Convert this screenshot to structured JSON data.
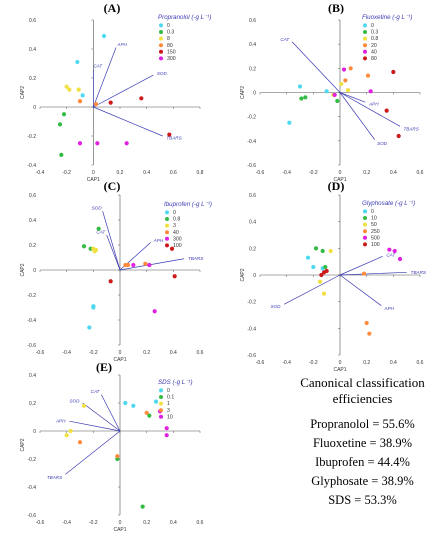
{
  "summary": {
    "title": "Canonical classification efficiencies",
    "lines": [
      "Propranolol = 55.6%",
      "Fluoxetine = 38.9%",
      "Ibuprofen = 44.4%",
      "Glyphosate = 38.9%",
      "SDS = 53.3%"
    ]
  },
  "chart_data": [
    {
      "type": "scatter",
      "panel_label": "(A)",
      "legend_title": "Propranolol (-g L⁻¹)",
      "xlabel": "CAP1",
      "ylabel": "CAP2",
      "xlim": [
        -0.4,
        0.8
      ],
      "ylim": [
        -0.4,
        0.6
      ],
      "xticks": [
        -0.4,
        -0.2,
        0,
        0.2,
        0.4,
        0.6,
        0.8
      ],
      "yticks": [
        -0.4,
        -0.2,
        0,
        0.2,
        0.4,
        0.6
      ],
      "series": [
        {
          "name": "0",
          "color": "#4dd8f0",
          "points": [
            [
              -0.12,
              0.31
            ],
            [
              0.08,
              0.49
            ],
            [
              -0.08,
              0.08
            ]
          ]
        },
        {
          "name": "0.3",
          "color": "#33bb44",
          "points": [
            [
              -0.25,
              -0.12
            ],
            [
              -0.24,
              -0.33
            ],
            [
              -0.22,
              -0.05
            ]
          ]
        },
        {
          "name": "8",
          "color": "#f0e040",
          "points": [
            [
              -0.2,
              0.14
            ],
            [
              -0.18,
              0.12
            ],
            [
              -0.11,
              0.12
            ]
          ]
        },
        {
          "name": "80",
          "color": "#ff8a3d",
          "points": [
            [
              -0.1,
              0.04
            ],
            [
              -0.1,
              0.04
            ],
            [
              0.02,
              0.02
            ]
          ]
        },
        {
          "name": "150",
          "color": "#cc1a1a",
          "points": [
            [
              0.13,
              0.03
            ],
            [
              0.57,
              -0.19
            ],
            [
              0.36,
              0.06
            ]
          ]
        },
        {
          "name": "300",
          "color": "#e020e0",
          "points": [
            [
              -0.1,
              -0.25
            ],
            [
              0.03,
              -0.25
            ],
            [
              0.25,
              -0.25
            ]
          ]
        }
      ],
      "vectors": [
        {
          "label": "CAT",
          "end": [
            0.0,
            0.26
          ]
        },
        {
          "label": "APH",
          "end": [
            0.17,
            0.41
          ]
        },
        {
          "label": "SOD",
          "end": [
            0.45,
            0.22
          ]
        },
        {
          "label": "TBARS",
          "end": [
            0.52,
            -0.2
          ]
        }
      ]
    },
    {
      "type": "scatter",
      "panel_label": "(B)",
      "legend_title": "Fluoxetine (-g L⁻¹)",
      "xlabel": "CAP1",
      "ylabel": "CAP2",
      "xlim": [
        -0.6,
        0.6
      ],
      "ylim": [
        -0.6,
        0.6
      ],
      "xticks": [
        -0.6,
        -0.4,
        -0.2,
        0,
        0.2,
        0.4,
        0.6
      ],
      "yticks": [
        -0.6,
        -0.4,
        -0.2,
        0,
        0.2,
        0.4,
        0.6
      ],
      "series": [
        {
          "name": "0",
          "color": "#4dd8f0",
          "points": [
            [
              -0.38,
              -0.25
            ],
            [
              -0.3,
              0.05
            ],
            [
              -0.1,
              0.01
            ]
          ]
        },
        {
          "name": "0.3",
          "color": "#33bb44",
          "points": [
            [
              -0.29,
              -0.05
            ],
            [
              -0.26,
              -0.04
            ],
            [
              -0.02,
              -0.07
            ]
          ]
        },
        {
          "name": "0.8",
          "color": "#f0e040",
          "points": [
            [
              0.06,
              0.02
            ],
            [
              0.01,
              0.07
            ],
            [
              -0.05,
              -0.02
            ]
          ]
        },
        {
          "name": "20",
          "color": "#ff8a3d",
          "points": [
            [
              0.08,
              0.2
            ],
            [
              0.04,
              0.1
            ],
            [
              0.21,
              0.14
            ]
          ]
        },
        {
          "name": "40",
          "color": "#e020e0",
          "points": [
            [
              -0.04,
              -0.02
            ],
            [
              0.03,
              0.19
            ],
            [
              0.23,
              0.01
            ]
          ]
        },
        {
          "name": "80",
          "color": "#cc1a1a",
          "points": [
            [
              0.4,
              0.17
            ],
            [
              0.35,
              -0.15
            ],
            [
              0.44,
              -0.36
            ]
          ]
        }
      ],
      "vectors": [
        {
          "label": "CAT",
          "end": [
            -0.36,
            0.42
          ]
        },
        {
          "label": "APH",
          "end": [
            0.19,
            -0.08
          ]
        },
        {
          "label": "SOD",
          "end": [
            0.26,
            -0.39
          ]
        },
        {
          "label": "TBARS",
          "end": [
            0.45,
            -0.28
          ]
        }
      ]
    },
    {
      "type": "scatter",
      "panel_label": "(C)",
      "legend_title": "Ibuprofen (-g L⁻¹)",
      "xlabel": "CAP1",
      "ylabel": "CAP2",
      "xlim": [
        -0.6,
        0.6
      ],
      "ylim": [
        -0.6,
        0.6
      ],
      "xticks": [
        -0.6,
        -0.4,
        -0.2,
        0,
        0.2,
        0.4,
        0.6
      ],
      "yticks": [
        -0.6,
        -0.4,
        -0.2,
        0,
        0.2,
        0.4,
        0.6
      ],
      "series": [
        {
          "name": "0",
          "color": "#4dd8f0",
          "points": [
            [
              -0.2,
              -0.3
            ],
            [
              -0.2,
              -0.29
            ],
            [
              -0.23,
              -0.46
            ]
          ]
        },
        {
          "name": "0.8",
          "color": "#33bb44",
          "points": [
            [
              -0.27,
              0.19
            ],
            [
              -0.16,
              0.33
            ],
            [
              -0.22,
              0.17
            ]
          ]
        },
        {
          "name": "3",
          "color": "#f0e040",
          "points": [
            [
              -0.19,
              0.15
            ],
            [
              -0.2,
              0.17
            ],
            [
              -0.18,
              0.16
            ]
          ]
        },
        {
          "name": "40",
          "color": "#ff8a3d",
          "points": [
            [
              0.04,
              0.04
            ],
            [
              0.19,
              0.05
            ],
            [
              0.06,
              0.04
            ]
          ]
        },
        {
          "name": "300",
          "color": "#e020e0",
          "points": [
            [
              0.1,
              0.04
            ],
            [
              0.22,
              0.04
            ],
            [
              0.26,
              -0.33
            ]
          ]
        },
        {
          "name": "100",
          "color": "#cc1a1a",
          "points": [
            [
              0.39,
              0.17
            ],
            [
              0.41,
              -0.05
            ],
            [
              -0.07,
              -0.09
            ]
          ]
        }
      ],
      "vectors": [
        {
          "label": "SOD",
          "end": [
            -0.13,
            0.47
          ]
        },
        {
          "label": "CAT",
          "end": [
            -0.1,
            0.28
          ]
        },
        {
          "label": "APH",
          "end": [
            0.23,
            0.22
          ]
        },
        {
          "label": "TBARS",
          "end": [
            0.48,
            0.09
          ]
        }
      ]
    },
    {
      "type": "scatter",
      "panel_label": "(D)",
      "legend_title": "Glyphosate (-g L⁻¹)",
      "xlabel": "CAP1",
      "ylabel": "CAP2",
      "xlim": [
        -0.6,
        0.6
      ],
      "ylim": [
        -0.6,
        0.6
      ],
      "xticks": [
        -0.6,
        -0.4,
        -0.2,
        0,
        0.2,
        0.4,
        0.6
      ],
      "yticks": [
        -0.6,
        -0.4,
        -0.2,
        0,
        0.2,
        0.4,
        0.6
      ],
      "series": [
        {
          "name": "0",
          "color": "#4dd8f0",
          "points": [
            [
              -0.2,
              0.06
            ],
            [
              -0.24,
              0.13
            ],
            [
              -0.13,
              0.05
            ]
          ]
        },
        {
          "name": "10",
          "color": "#33bb44",
          "points": [
            [
              -0.18,
              0.2
            ],
            [
              -0.13,
              0.18
            ],
            [
              -0.11,
              0.06
            ]
          ]
        },
        {
          "name": "50",
          "color": "#f0e040",
          "points": [
            [
              -0.07,
              0.18
            ],
            [
              -0.12,
              -0.14
            ],
            [
              -0.15,
              -0.05
            ]
          ]
        },
        {
          "name": "250",
          "color": "#ff8a3d",
          "points": [
            [
              0.2,
              -0.36
            ],
            [
              0.22,
              -0.44
            ],
            [
              0.18,
              0.01
            ]
          ]
        },
        {
          "name": "500",
          "color": "#e020e0",
          "points": [
            [
              0.37,
              0.19
            ],
            [
              0.45,
              0.12
            ],
            [
              0.41,
              0.18
            ]
          ]
        },
        {
          "name": "100",
          "color": "#cc1a1a",
          "points": [
            [
              -0.1,
              0.03
            ],
            [
              -0.14,
              0.0
            ],
            [
              -0.12,
              0.02
            ]
          ]
        }
      ],
      "vectors": [
        {
          "label": "CAT",
          "end": [
            0.32,
            0.14
          ]
        },
        {
          "label": "TBARS",
          "end": [
            0.5,
            0.02
          ]
        },
        {
          "label": "APH",
          "end": [
            0.31,
            -0.23
          ]
        },
        {
          "label": "SOD",
          "end": [
            -0.42,
            -0.22
          ]
        }
      ]
    },
    {
      "type": "scatter",
      "panel_label": "(E)",
      "legend_title": "SDS (-g L⁻¹)",
      "xlabel": "CAP1",
      "ylabel": "CAP2",
      "xlim": [
        -0.6,
        0.6
      ],
      "ylim": [
        -0.6,
        0.4
      ],
      "xticks": [
        -0.6,
        -0.4,
        -0.2,
        0,
        0.2,
        0.4,
        0.6
      ],
      "yticks": [
        -0.6,
        -0.4,
        -0.2,
        0,
        0.2,
        0.4
      ],
      "series": [
        {
          "name": "0",
          "color": "#4dd8f0",
          "points": [
            [
              0.04,
              0.2
            ],
            [
              0.1,
              0.18
            ],
            [
              0.27,
              0.21
            ]
          ]
        },
        {
          "name": "0.1",
          "color": "#33bb44",
          "points": [
            [
              0.22,
              0.11
            ],
            [
              -0.02,
              -0.2
            ],
            [
              0.17,
              -0.54
            ]
          ]
        },
        {
          "name": "1",
          "color": "#f0e040",
          "points": [
            [
              -0.4,
              -0.03
            ],
            [
              -0.37,
              0.0
            ],
            [
              -0.27,
              0.18
            ]
          ]
        },
        {
          "name": "3",
          "color": "#ff8a3d",
          "points": [
            [
              -0.3,
              -0.08
            ],
            [
              -0.02,
              -0.18
            ],
            [
              0.2,
              0.13
            ]
          ]
        },
        {
          "name": "10",
          "color": "#e020e0",
          "points": [
            [
              0.35,
              0.02
            ],
            [
              0.35,
              -0.03
            ],
            [
              0.3,
              0.14
            ]
          ]
        }
      ],
      "vectors": [
        {
          "label": "CAT",
          "end": [
            -0.14,
            0.26
          ]
        },
        {
          "label": "SOD",
          "end": [
            -0.28,
            0.2
          ]
        },
        {
          "label": "APH",
          "end": [
            -0.38,
            0.07
          ]
        },
        {
          "label": "TBARS",
          "end": [
            -0.41,
            -0.31
          ]
        }
      ]
    }
  ]
}
